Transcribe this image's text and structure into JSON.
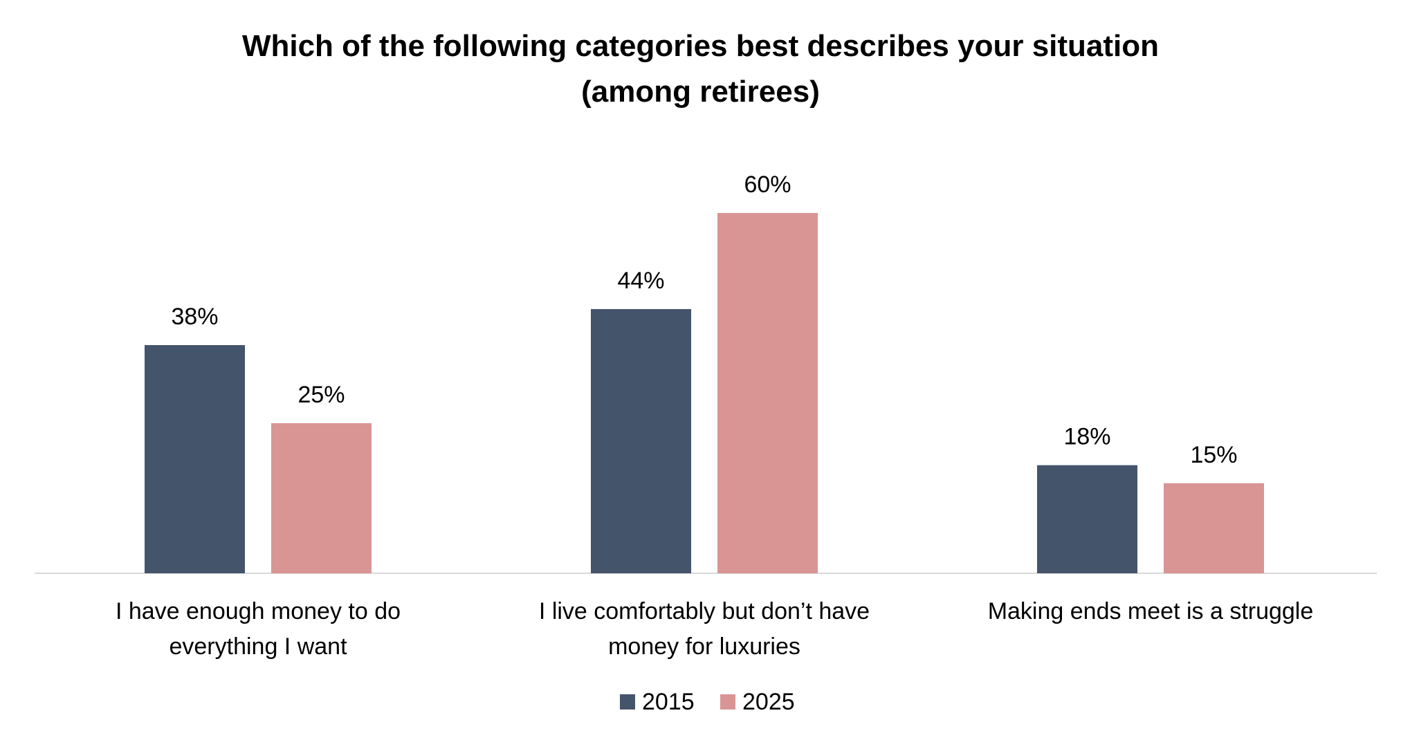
{
  "chart_data": {
    "type": "bar",
    "title_lines": [
      "Which of the following categories best describes your situation",
      "(among retirees)"
    ],
    "categories": [
      [
        "I have enough money to do",
        "everything I want"
      ],
      [
        "I live comfortably but don’t have",
        "money for luxuries"
      ],
      [
        "Making ends meet is a struggle"
      ]
    ],
    "series": [
      {
        "name": "2015",
        "values": [
          38,
          44,
          18
        ],
        "labels": [
          "38%",
          "44%",
          "18%"
        ],
        "color": "#44546a"
      },
      {
        "name": "2025",
        "values": [
          25,
          60,
          15
        ],
        "labels": [
          "25%",
          "60%",
          "15%"
        ],
        "color": "#d99594"
      }
    ],
    "ylim": [
      0,
      60
    ],
    "grid": false,
    "legend_position": "bottom-center",
    "axis_color": "#d9d9d9"
  }
}
